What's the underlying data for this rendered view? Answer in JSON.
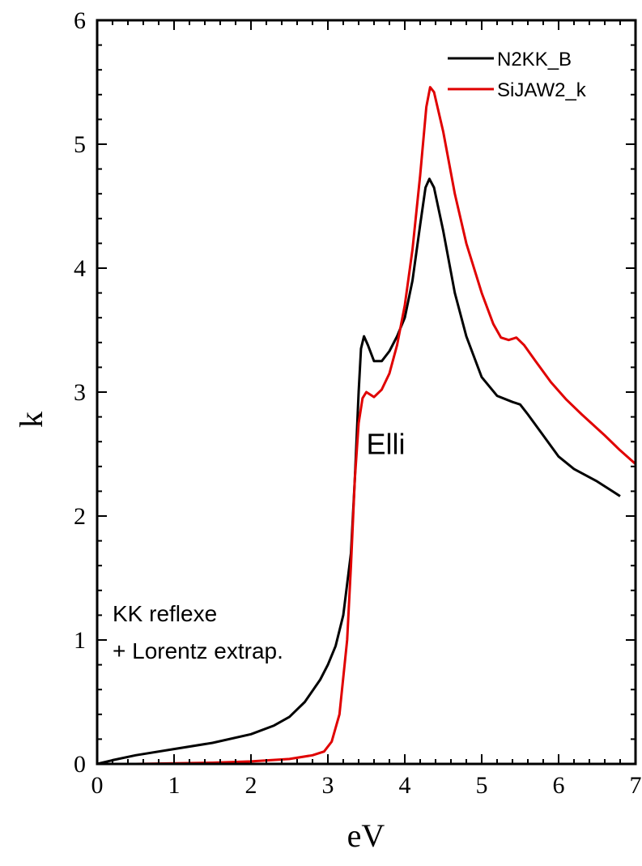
{
  "chart_data": {
    "type": "line",
    "xlabel": "eV",
    "ylabel": "k",
    "xlim": [
      0,
      7
    ],
    "ylim": [
      0,
      6
    ],
    "xticks": [
      0,
      1,
      2,
      3,
      4,
      5,
      6,
      7
    ],
    "yticks": [
      0,
      1,
      2,
      3,
      4,
      5,
      6
    ],
    "grid": false,
    "legend_position": "top-right",
    "series": [
      {
        "name": "N2KK_B",
        "color": "#000000",
        "points": [
          [
            0,
            0
          ],
          [
            0.2,
            0.03
          ],
          [
            0.5,
            0.07
          ],
          [
            1.0,
            0.12
          ],
          [
            1.5,
            0.17
          ],
          [
            2.0,
            0.24
          ],
          [
            2.3,
            0.31
          ],
          [
            2.5,
            0.38
          ],
          [
            2.7,
            0.5
          ],
          [
            2.9,
            0.68
          ],
          [
            3.0,
            0.8
          ],
          [
            3.1,
            0.95
          ],
          [
            3.2,
            1.2
          ],
          [
            3.3,
            1.7
          ],
          [
            3.35,
            2.3
          ],
          [
            3.4,
            3.0
          ],
          [
            3.43,
            3.35
          ],
          [
            3.47,
            3.45
          ],
          [
            3.52,
            3.38
          ],
          [
            3.6,
            3.25
          ],
          [
            3.7,
            3.25
          ],
          [
            3.8,
            3.33
          ],
          [
            3.9,
            3.45
          ],
          [
            4.0,
            3.6
          ],
          [
            4.1,
            3.9
          ],
          [
            4.2,
            4.35
          ],
          [
            4.27,
            4.65
          ],
          [
            4.32,
            4.72
          ],
          [
            4.38,
            4.65
          ],
          [
            4.5,
            4.3
          ],
          [
            4.65,
            3.8
          ],
          [
            4.8,
            3.45
          ],
          [
            5.0,
            3.12
          ],
          [
            5.2,
            2.97
          ],
          [
            5.4,
            2.92
          ],
          [
            5.5,
            2.9
          ],
          [
            5.6,
            2.82
          ],
          [
            5.8,
            2.65
          ],
          [
            6.0,
            2.48
          ],
          [
            6.2,
            2.38
          ],
          [
            6.5,
            2.28
          ],
          [
            6.7,
            2.2
          ],
          [
            6.8,
            2.16
          ]
        ]
      },
      {
        "name": "SiJAW2_k",
        "color": "#e00000",
        "points": [
          [
            0,
            0
          ],
          [
            0.5,
            0.0
          ],
          [
            1.5,
            0.01
          ],
          [
            2.0,
            0.02
          ],
          [
            2.5,
            0.04
          ],
          [
            2.8,
            0.07
          ],
          [
            2.95,
            0.1
          ],
          [
            3.05,
            0.18
          ],
          [
            3.15,
            0.4
          ],
          [
            3.25,
            1.0
          ],
          [
            3.3,
            1.6
          ],
          [
            3.35,
            2.3
          ],
          [
            3.4,
            2.75
          ],
          [
            3.45,
            2.95
          ],
          [
            3.5,
            3.0
          ],
          [
            3.6,
            2.96
          ],
          [
            3.7,
            3.02
          ],
          [
            3.8,
            3.15
          ],
          [
            3.9,
            3.38
          ],
          [
            4.0,
            3.7
          ],
          [
            4.1,
            4.15
          ],
          [
            4.2,
            4.75
          ],
          [
            4.28,
            5.3
          ],
          [
            4.33,
            5.46
          ],
          [
            4.38,
            5.42
          ],
          [
            4.5,
            5.1
          ],
          [
            4.65,
            4.6
          ],
          [
            4.8,
            4.2
          ],
          [
            5.0,
            3.8
          ],
          [
            5.15,
            3.55
          ],
          [
            5.25,
            3.44
          ],
          [
            5.35,
            3.42
          ],
          [
            5.45,
            3.44
          ],
          [
            5.55,
            3.38
          ],
          [
            5.7,
            3.25
          ],
          [
            5.9,
            3.08
          ],
          [
            6.1,
            2.94
          ],
          [
            6.3,
            2.82
          ],
          [
            6.6,
            2.65
          ],
          [
            6.8,
            2.53
          ],
          [
            7.0,
            2.42
          ]
        ]
      }
    ],
    "annotations": [
      {
        "text": "Elli",
        "x": 3.5,
        "y": 2.5,
        "color": "#e00000"
      },
      {
        "text": "KK reflexe",
        "x": 0.2,
        "y": 1.15,
        "color": "#000000"
      },
      {
        "text": "+ Lorentz extrap.",
        "x": 0.2,
        "y": 0.85,
        "color": "#000000"
      }
    ]
  }
}
